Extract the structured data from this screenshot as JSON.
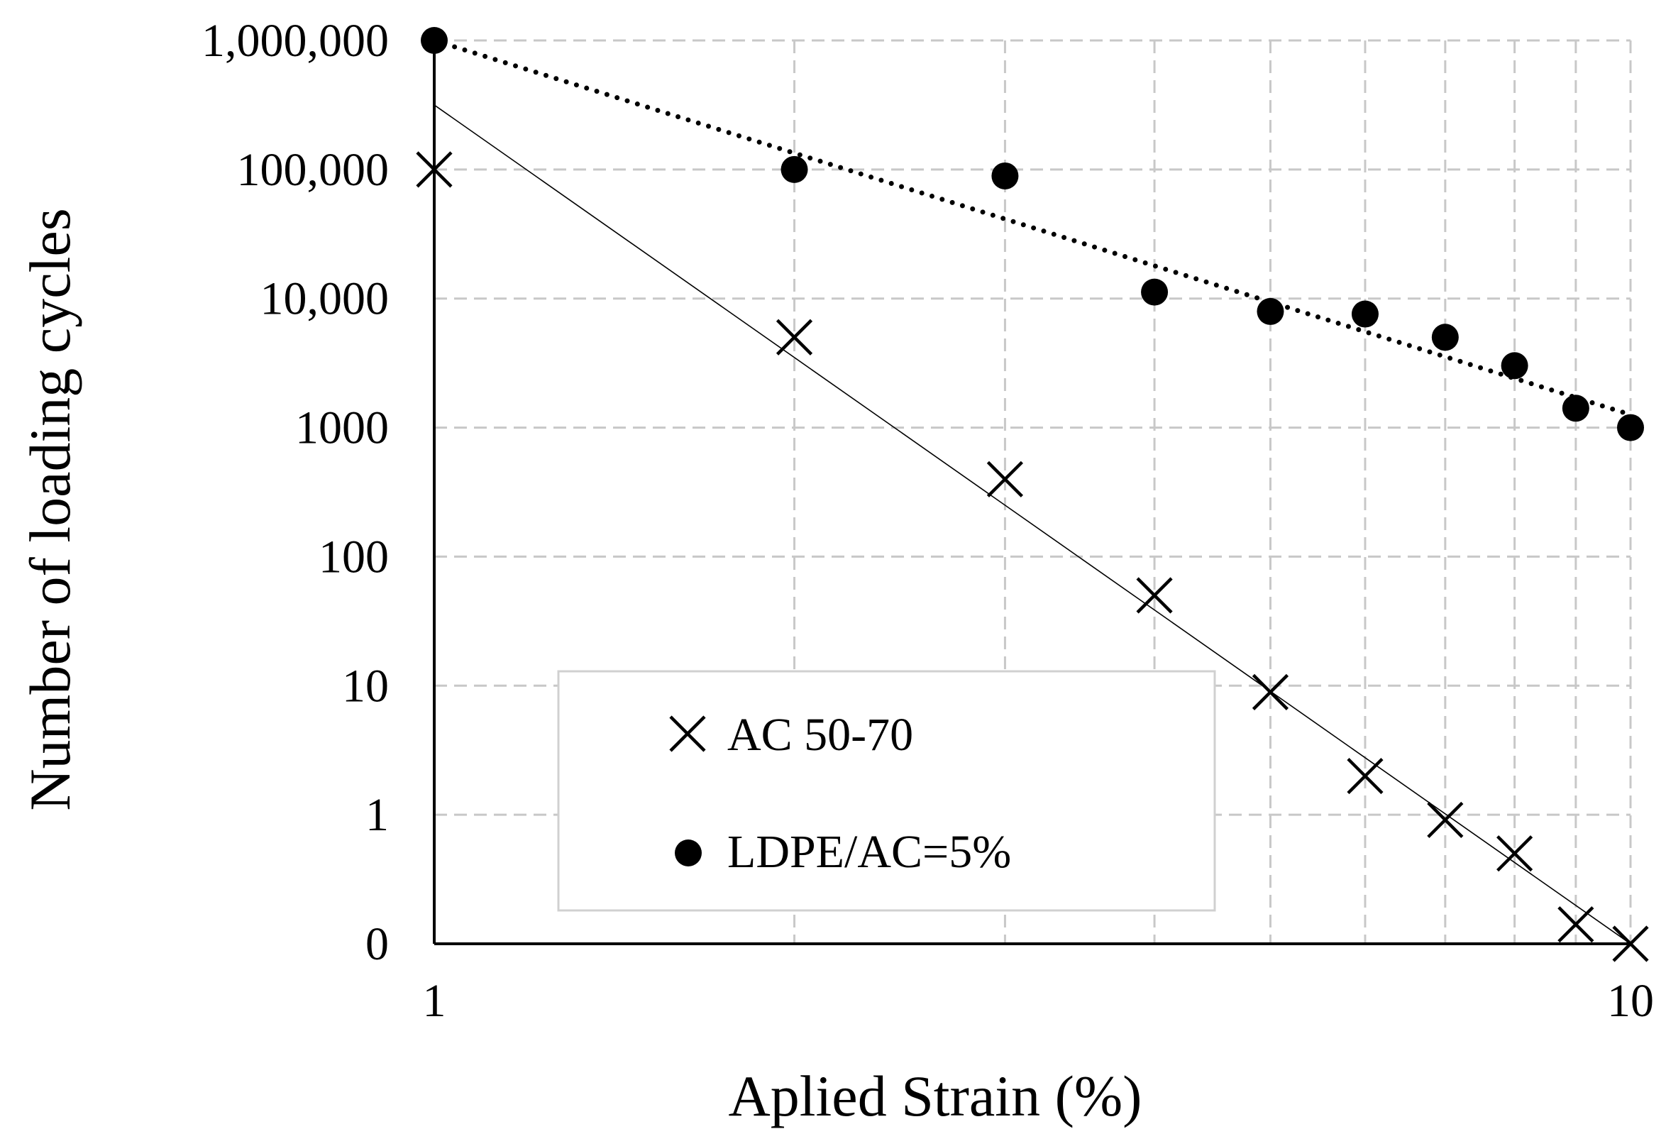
{
  "chart_data": {
    "type": "scatter",
    "xlabel": "Aplied Strain (%)",
    "ylabel": "Number of loading cycles",
    "x_scale": "log",
    "xlim": [
      1,
      10
    ],
    "x_ticks": [
      {
        "value": 1,
        "label": "1"
      },
      {
        "value": 10,
        "label": "10"
      }
    ],
    "x_gridlines": [
      2,
      3,
      4,
      5,
      6,
      7,
      8,
      9,
      10
    ],
    "y_scale": "categorical-log",
    "y_ticks": [
      {
        "level": 0,
        "label": "0"
      },
      {
        "level": 1,
        "label": "1"
      },
      {
        "level": 2,
        "label": "10"
      },
      {
        "level": 3,
        "label": "100"
      },
      {
        "level": 4,
        "label": "1000"
      },
      {
        "level": 5,
        "label": "10,000"
      },
      {
        "level": 6,
        "label": "100,000"
      },
      {
        "level": 7,
        "label": "1,000,000"
      }
    ],
    "grid": true,
    "legend_position": "bottom-center",
    "series": [
      {
        "name": "AC 50-70",
        "marker": "x",
        "trendline": "solid",
        "trend": {
          "x_start": 1,
          "level_start": 6.5,
          "x_end": 10,
          "level_end": 0
        },
        "points": [
          {
            "x": 1,
            "level": 6
          },
          {
            "x": 2,
            "level": 4.7
          },
          {
            "x": 3,
            "level": 3.6
          },
          {
            "x": 4,
            "level": 2.7
          },
          {
            "x": 5,
            "level": 1.95
          },
          {
            "x": 6,
            "level": 1.3
          },
          {
            "x": 7,
            "level": 0.96
          },
          {
            "x": 8,
            "level": 0.7
          },
          {
            "x": 9,
            "level": 0.15
          },
          {
            "x": 10,
            "level": 0
          }
        ]
      },
      {
        "name": "LDPE/AC=5%",
        "marker": "dot",
        "trendline": "dotted",
        "trend": {
          "x_start": 1,
          "level_start": 7,
          "x_end": 10,
          "level_end": 4.1
        },
        "points": [
          {
            "x": 1,
            "level": 7
          },
          {
            "x": 2,
            "level": 6
          },
          {
            "x": 3,
            "level": 5.95
          },
          {
            "x": 4,
            "level": 5.05
          },
          {
            "x": 5,
            "level": 4.9
          },
          {
            "x": 6,
            "level": 4.88
          },
          {
            "x": 7,
            "level": 4.7
          },
          {
            "x": 8,
            "level": 4.48
          },
          {
            "x": 9,
            "level": 4.15
          },
          {
            "x": 10,
            "level": 4
          }
        ]
      }
    ]
  }
}
